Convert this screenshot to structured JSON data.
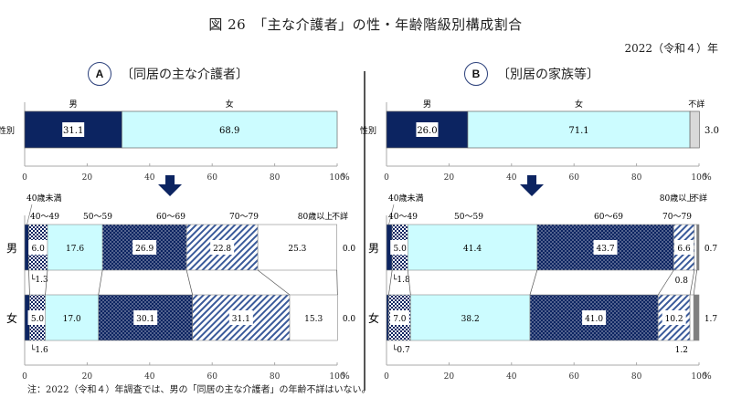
{
  "title": "図 26　「主な介護者」の性・年齢階級別構成割合",
  "year": "2022（令和４）年",
  "note": "注：2022（令和４）年調査では、男の「同居の主な介護者」の年齢不詳はいない。",
  "colors": {
    "male": "#0c2461",
    "female": "#ccfcff",
    "unknown": "#d9d9d9",
    "unknown_dark": "#7f7f7f",
    "under40": "#0c2461",
    "age60_69": "#0c2461",
    "age80plus": "#ffffff",
    "arrow": "#0c2461"
  },
  "panels": [
    {
      "badge": "A",
      "label": "〔同居の主な介護者〕"
    },
    {
      "badge": "B",
      "label": "〔別居の家族等〕"
    }
  ],
  "chart_data": [
    {
      "type": "bar",
      "stacked": true,
      "orientation": "horizontal",
      "title": "A 〔同居の主な介護者〕 性別",
      "categories": [
        "性別"
      ],
      "series": [
        {
          "name": "男",
          "values": [
            31.1
          ]
        },
        {
          "name": "女",
          "values": [
            68.9
          ]
        }
      ],
      "xlim": [
        0,
        100
      ],
      "xticks": [
        0,
        20,
        40,
        60,
        80,
        100
      ],
      "xlabel": "%"
    },
    {
      "type": "bar",
      "stacked": true,
      "orientation": "horizontal",
      "title": "A 〔同居の主な介護者〕 年齢階級別",
      "categories": [
        "男",
        "女"
      ],
      "series": [
        {
          "name": "40歳未満",
          "values": [
            1.3,
            1.6
          ]
        },
        {
          "name": "40～49",
          "values": [
            6.0,
            5.0
          ]
        },
        {
          "name": "50～59",
          "values": [
            17.6,
            17.0
          ]
        },
        {
          "name": "60～69",
          "values": [
            26.9,
            30.1
          ]
        },
        {
          "name": "70～79",
          "values": [
            22.8,
            31.1
          ]
        },
        {
          "name": "80歳以上",
          "values": [
            25.3,
            15.3
          ]
        },
        {
          "name": "不詳",
          "values": [
            0,
            0.0
          ]
        }
      ],
      "xlim": [
        0,
        100
      ],
      "xticks": [
        0,
        20,
        40,
        60,
        80,
        100
      ],
      "xlabel": "%"
    },
    {
      "type": "bar",
      "stacked": true,
      "orientation": "horizontal",
      "title": "B 〔別居の家族等〕 性別",
      "categories": [
        "性別"
      ],
      "series": [
        {
          "name": "男",
          "values": [
            26.0
          ]
        },
        {
          "name": "女",
          "values": [
            71.1
          ]
        },
        {
          "name": "不詳",
          "values": [
            3.0
          ]
        }
      ],
      "xlim": [
        0,
        100
      ],
      "xticks": [
        0,
        20,
        40,
        60,
        80,
        100
      ],
      "xlabel": "%"
    },
    {
      "type": "bar",
      "stacked": true,
      "orientation": "horizontal",
      "title": "B 〔別居の家族等〕 年齢階級別",
      "categories": [
        "男",
        "女"
      ],
      "series": [
        {
          "name": "40歳未満",
          "values": [
            1.8,
            0.7
          ]
        },
        {
          "name": "40～49",
          "values": [
            5.0,
            7.0
          ]
        },
        {
          "name": "50～59",
          "values": [
            41.4,
            38.2
          ]
        },
        {
          "name": "60～69",
          "values": [
            43.7,
            41.0
          ]
        },
        {
          "name": "70～79",
          "values": [
            6.6,
            10.2
          ]
        },
        {
          "name": "80歳以上",
          "values": [
            0.8,
            1.2
          ]
        },
        {
          "name": "不詳",
          "values": [
            0.7,
            1.7
          ]
        }
      ],
      "xlim": [
        0,
        100
      ],
      "xticks": [
        0,
        20,
        40,
        60,
        80,
        100
      ],
      "xlabel": "%"
    }
  ]
}
